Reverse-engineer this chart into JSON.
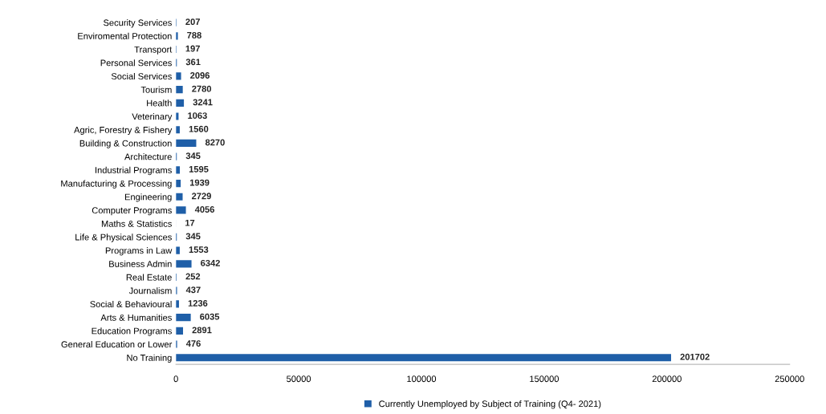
{
  "chart_data": {
    "type": "bar",
    "orientation": "horizontal",
    "categories": [
      "Security Services",
      "Enviromental Protection",
      "Transport",
      "Personal Services",
      "Social Services",
      "Tourism",
      "Health",
      "Veterinary",
      "Agric, Forestry & Fishery",
      "Building & Construction",
      "Architecture",
      "Industrial Programs",
      "Manufacturing & Processing",
      "Engineering",
      "Computer Programs",
      "Maths & Statistics",
      "Life & Physical Sciences",
      "Programs in Law",
      "Business Admin",
      "Real Estate",
      "Journalism",
      "Social & Behavioural",
      "Arts & Humanities",
      "Education Programs",
      "General Education or Lower",
      "No Training"
    ],
    "series": [
      {
        "name": "Currently Unemployed by Subject of Training (Q4- 2021)",
        "color": "#1f5fa8",
        "values": [
          207,
          788,
          197,
          361,
          2096,
          2780,
          3241,
          1063,
          1560,
          8270,
          345,
          1595,
          1939,
          2729,
          4056,
          17,
          345,
          1553,
          6342,
          252,
          437,
          1236,
          6035,
          2891,
          476,
          201702
        ]
      }
    ],
    "xlim": [
      0,
      250000
    ],
    "xticks": [
      0,
      50000,
      100000,
      150000,
      200000,
      250000
    ],
    "data_labels": true,
    "grid": false,
    "legend": "bottom"
  }
}
